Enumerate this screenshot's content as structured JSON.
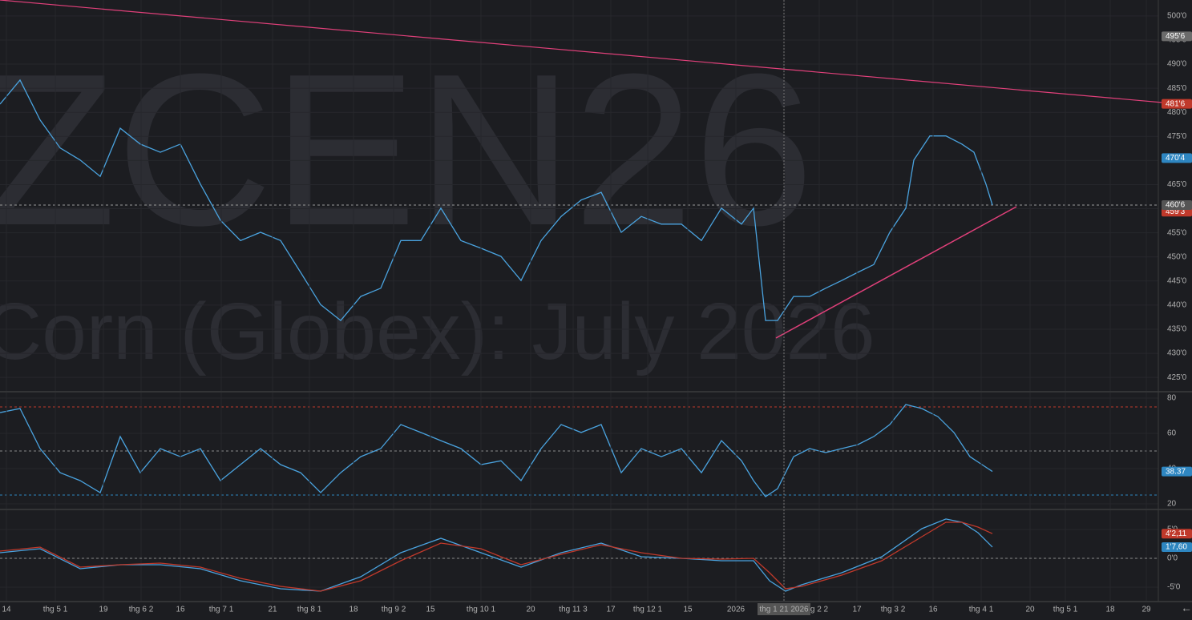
{
  "chart_data": [
    {
      "type": "line",
      "watermark": "ZCEN26",
      "watermark_subtitle": "Corn (Globex): July 2026",
      "xlim": [
        0,
        289
      ],
      "ylim": [
        422.2,
        503.3
      ],
      "grid": true,
      "yticks": [
        {
          "value": 425,
          "label": "425'0"
        },
        {
          "value": 430,
          "label": "430'0"
        },
        {
          "value": 435,
          "label": "435'0"
        },
        {
          "value": 440,
          "label": "440'0"
        },
        {
          "value": 445,
          "label": "445'0"
        },
        {
          "value": 450,
          "label": "450'0"
        },
        {
          "value": 455,
          "label": "455'0"
        },
        {
          "value": 460,
          "label": "460'0"
        },
        {
          "value": 465,
          "label": "465'0"
        },
        {
          "value": 470,
          "label": "470'0"
        },
        {
          "value": 475,
          "label": "475'0"
        },
        {
          "value": 480,
          "label": "480'0"
        },
        {
          "value": 485,
          "label": "485'0"
        },
        {
          "value": 490,
          "label": "490'0"
        },
        {
          "value": 495,
          "label": "495'0"
        },
        {
          "value": 500,
          "label": "500'0"
        }
      ],
      "series": [
        {
          "color": "#4aa3df",
          "x": [
            0,
            5,
            10,
            15,
            20,
            25,
            30,
            35,
            40,
            45,
            50,
            55,
            60,
            65,
            70,
            75,
            80,
            85,
            90,
            95,
            100,
            105,
            110,
            115,
            120,
            125,
            130,
            135,
            140,
            145,
            150,
            155,
            160,
            165,
            170,
            175,
            180,
            185,
            188,
            191,
            194,
            198,
            202,
            206,
            210,
            214,
            218,
            222,
            226,
            228,
            232,
            236,
            240,
            243,
            246,
            247.6
          ],
          "values": [
            481.7,
            486.7,
            478.4,
            472.6,
            470.1,
            466.7,
            476.7,
            473.4,
            471.7,
            473.4,
            465.1,
            457.6,
            453.4,
            455.1,
            453.4,
            446.8,
            440.1,
            436.8,
            441.8,
            443.5,
            453.4,
            453.4,
            460.1,
            453.4,
            451.8,
            450.1,
            445.1,
            453.4,
            458.4,
            461.8,
            463.4,
            455.1,
            458.4,
            456.8,
            456.8,
            453.4,
            460.1,
            456.8,
            460.1,
            436.8,
            436.8,
            441.8,
            441.8,
            443.5,
            445.1,
            446.8,
            448.4,
            455.1,
            460.1,
            470.1,
            475.1,
            475.1,
            473.4,
            471.7,
            465.1,
            460.75
          ]
        }
      ],
      "levels": [
        {
          "value": 460.75,
          "color": "#9a9a9a"
        }
      ],
      "tags": [
        {
          "value": 495.75,
          "label": "495'6",
          "color": "#6b6b6b"
        },
        {
          "value": 481.75,
          "label": "481'6",
          "color": "#c0392b"
        },
        {
          "value": 470.5,
          "label": "470'4",
          "color": "#2e86c1"
        },
        {
          "value": 459.375,
          "label": "459'3",
          "color": "#c0392b"
        },
        {
          "value": 460.75,
          "label": "460'6",
          "color": "#555555"
        }
      ]
    },
    {
      "type": "line",
      "xlim": [
        0,
        289
      ],
      "ylim": [
        17.3,
        83.2
      ],
      "grid": true,
      "yticks": [
        20,
        40,
        60,
        80
      ],
      "series": [
        {
          "color": "#4aa3df",
          "x": [
            0,
            5,
            10,
            15,
            20,
            25,
            30,
            35,
            40,
            45,
            50,
            55,
            60,
            65,
            70,
            75,
            80,
            85,
            90,
            95,
            100,
            105,
            110,
            115,
            120,
            125,
            130,
            135,
            140,
            145,
            150,
            155,
            160,
            165,
            170,
            175,
            180,
            185,
            188,
            191,
            194,
            198,
            202,
            206,
            210,
            214,
            218,
            222,
            226,
            230,
            234,
            238,
            242,
            245,
            247.6
          ],
          "values": [
            71.8,
            74.1,
            51.4,
            37.7,
            33.2,
            26.4,
            58.2,
            37.7,
            51.4,
            46.8,
            51.4,
            33.2,
            42.3,
            51.4,
            42.3,
            37.7,
            26.4,
            37.7,
            46.8,
            51.4,
            65,
            60.5,
            55.9,
            51.4,
            42.3,
            44.5,
            33.2,
            51.4,
            65,
            60.5,
            65,
            37.7,
            51.4,
            46.8,
            51.4,
            37.7,
            55.9,
            44.5,
            33.2,
            24.1,
            28.6,
            46.8,
            51.4,
            49.1,
            51.4,
            53.6,
            58.2,
            65,
            76.4,
            74.1,
            69.5,
            60.5,
            46.8,
            42.3,
            38.37
          ]
        }
      ],
      "levels": [
        {
          "value": 75,
          "color": "#c0392b"
        },
        {
          "value": 50,
          "color": "#8a8a8a"
        },
        {
          "value": 25,
          "color": "#2e86c1"
        }
      ],
      "tags": [
        {
          "value": 38.37,
          "label": "38.37",
          "color": "#2e86c1"
        }
      ]
    },
    {
      "type": "line",
      "xlim": [
        0,
        289
      ],
      "ylim": [
        -7.36,
        8.33
      ],
      "grid": true,
      "yticks": [
        {
          "value": -5,
          "label": "-5'0"
        },
        {
          "value": 0,
          "label": "0'0"
        },
        {
          "value": 5,
          "label": "5'0"
        }
      ],
      "series": [
        {
          "color": "#4aa3df",
          "x": [
            0,
            10,
            20,
            30,
            40,
            50,
            60,
            70,
            80,
            90,
            100,
            110,
            120,
            130,
            140,
            150,
            160,
            170,
            180,
            188,
            192,
            196,
            200,
            210,
            220,
            230,
            236,
            240,
            244,
            247.6
          ],
          "values": [
            0.97,
            1.67,
            -1.81,
            -1.11,
            -1.11,
            -1.81,
            -3.89,
            -5.28,
            -5.69,
            -3.19,
            0.97,
            3.47,
            0.97,
            -1.53,
            0.97,
            2.64,
            0.28,
            0,
            -0.42,
            -0.42,
            -3.89,
            -5.69,
            -4.58,
            -2.5,
            0.28,
            5.14,
            6.81,
            6.25,
            4.44,
            1.95
          ]
        },
        {
          "color": "#c0392b",
          "x": [
            0,
            10,
            20,
            30,
            40,
            50,
            60,
            70,
            80,
            90,
            100,
            110,
            120,
            130,
            140,
            150,
            160,
            170,
            180,
            188,
            192,
            196,
            200,
            210,
            220,
            230,
            236,
            240,
            244,
            247.6
          ],
          "values": [
            1.25,
            1.94,
            -1.53,
            -1.11,
            -0.83,
            -1.53,
            -3.47,
            -4.86,
            -5.69,
            -3.89,
            -0.42,
            2.64,
            1.67,
            -1.11,
            0.69,
            2.36,
            0.97,
            0,
            -0.14,
            0,
            -2.5,
            -5.28,
            -4.86,
            -2.92,
            -0.42,
            3.75,
            6.25,
            6.25,
            5.42,
            4.27
          ]
        }
      ],
      "levels": [
        {
          "value": 0,
          "color": "#8a8a8a"
        }
      ],
      "tags": [
        {
          "value": 4.27,
          "label": "4'2,11",
          "color": "#c0392b"
        },
        {
          "value": 1.95,
          "label": "1'7,60",
          "color": "#2e86c1"
        }
      ],
      "xticks": [
        {
          "value": 1.6,
          "label": "14"
        },
        {
          "value": 13.8,
          "label": "thg 5 1"
        },
        {
          "value": 25.8,
          "label": "19"
        },
        {
          "value": 35.2,
          "label": "thg 6 2"
        },
        {
          "value": 45,
          "label": "16"
        },
        {
          "value": 55.2,
          "label": "thg 7 1"
        },
        {
          "value": 68,
          "label": "21"
        },
        {
          "value": 77.2,
          "label": "thg 8 1"
        },
        {
          "value": 88.2,
          "label": "18"
        },
        {
          "value": 98.2,
          "label": "thg 9 2"
        },
        {
          "value": 107.4,
          "label": "15"
        },
        {
          "value": 120,
          "label": "thg 10 1"
        },
        {
          "value": 132.4,
          "label": "20"
        },
        {
          "value": 143,
          "label": "thg 11 3"
        },
        {
          "value": 152.4,
          "label": "17"
        },
        {
          "value": 161.6,
          "label": "thg 12 1"
        },
        {
          "value": 171.6,
          "label": "15"
        },
        {
          "value": 183.6,
          "label": "2026"
        },
        {
          "value": 195.6,
          "label": "thg 1 21 2026"
        },
        {
          "value": 204.4,
          "label": "g 2 2"
        },
        {
          "value": 213.8,
          "label": "17"
        },
        {
          "value": 222.8,
          "label": "thg 3 2"
        },
        {
          "value": 232.8,
          "label": "16"
        },
        {
          "value": 244.8,
          "label": "thg 4 1"
        },
        {
          "value": 257,
          "label": "20"
        },
        {
          "value": 265.8,
          "label": "thg 5 1"
        },
        {
          "value": 277,
          "label": "18"
        },
        {
          "value": 286,
          "label": "29"
        }
      ]
    }
  ]
}
